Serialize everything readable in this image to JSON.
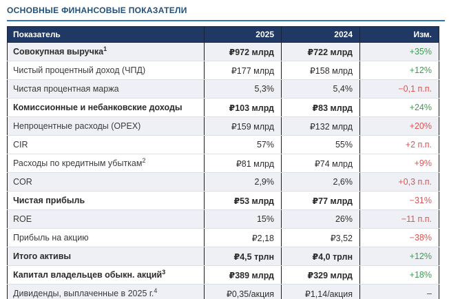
{
  "page": {
    "title": "ОСНОВНЫЕ ФИНАНСОВЫЕ ПОКАЗАТЕЛИ"
  },
  "colors": {
    "accent_rule": "#2E74B5",
    "header_bg": "#1F3864",
    "positive": "#3B9C4F",
    "negative": "#E05252",
    "neutral": "#4a4a4a",
    "shaded_row_bg": "#eef0f5"
  },
  "table": {
    "headers": {
      "indicator": "Показатель",
      "y2025": "2025",
      "y2024": "2024",
      "change": "Изм."
    },
    "rows": [
      {
        "label": "Совокупная выручка",
        "sup": "1",
        "v2025": "₽972 млрд",
        "v2024": "₽722 млрд",
        "change": "+35%",
        "bold": true,
        "shaded": true,
        "change_color": "pos"
      },
      {
        "label": "Чистый процентный доход (ЧПД)",
        "sup": "",
        "v2025": "₽177 млрд",
        "v2024": "₽158 млрд",
        "change": "+12%",
        "bold": false,
        "shaded": false,
        "change_color": "pos"
      },
      {
        "label": "Чистая процентная маржа",
        "sup": "",
        "v2025": "5,3%",
        "v2024": "5,4%",
        "change": "−0,1 п.п.",
        "bold": false,
        "shaded": true,
        "change_color": "neg"
      },
      {
        "label": "Комиссионные и небанковские доходы",
        "sup": "",
        "v2025": "₽103 млрд",
        "v2024": "₽83 млрд",
        "change": "+24%",
        "bold": true,
        "shaded": false,
        "change_color": "pos"
      },
      {
        "label": "Непроцентные расходы (OPEX)",
        "sup": "",
        "v2025": "₽159 млрд",
        "v2024": "₽132 млрд",
        "change": "+20%",
        "bold": false,
        "shaded": true,
        "change_color": "neg"
      },
      {
        "label": "CIR",
        "sup": "",
        "v2025": "57%",
        "v2024": "55%",
        "change": "+2 п.п.",
        "bold": false,
        "shaded": false,
        "change_color": "neg"
      },
      {
        "label": "Расходы по кредитным убыткам",
        "sup": "2",
        "v2025": "₽81 млрд",
        "v2024": "₽74 млрд",
        "change": "+9%",
        "bold": false,
        "shaded": false,
        "change_color": "neg"
      },
      {
        "label": "COR",
        "sup": "",
        "v2025": "2,9%",
        "v2024": "2,6%",
        "change": "+0,3 п.п.",
        "bold": false,
        "shaded": true,
        "change_color": "neg"
      },
      {
        "label": "Чистая прибыль",
        "sup": "",
        "v2025": "₽53 млрд",
        "v2024": "₽77 млрд",
        "change": "−31%",
        "bold": true,
        "shaded": false,
        "change_color": "neg"
      },
      {
        "label": "ROE",
        "sup": "",
        "v2025": "15%",
        "v2024": "26%",
        "change": "−11 п.п.",
        "bold": false,
        "shaded": true,
        "change_color": "neg"
      },
      {
        "label": "Прибыль на акцию",
        "sup": "",
        "v2025": "₽2,18",
        "v2024": "₽3,52",
        "change": "−38%",
        "bold": false,
        "shaded": false,
        "change_color": "neg"
      },
      {
        "label": "Итого активы",
        "sup": "",
        "v2025": "₽4,5 трлн",
        "v2024": "₽4,0 трлн",
        "change": "+12%",
        "bold": true,
        "shaded": true,
        "change_color": "pos"
      },
      {
        "label": "Капитал владельцев обыкн. акций",
        "sup": "3",
        "v2025": "₽389 млрд",
        "v2024": "₽329 млрд",
        "change": "+18%",
        "bold": true,
        "shaded": false,
        "change_color": "pos"
      },
      {
        "label": "Дивиденды, выплаченные в 2025 г.",
        "sup": "4",
        "v2025": "₽0,35/акция",
        "v2024": "₽1,14/акция",
        "change": "–",
        "bold": false,
        "shaded": true,
        "change_color": "neu"
      }
    ]
  }
}
